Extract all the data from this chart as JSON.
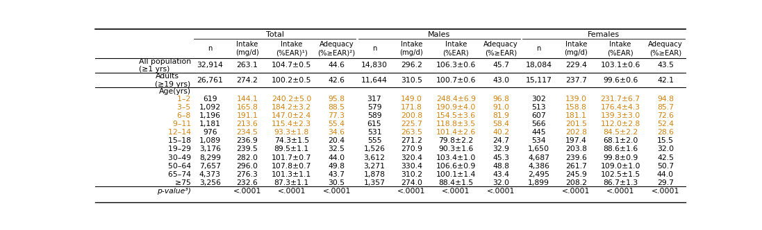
{
  "rows": [
    {
      "label": "All population\n(≥1 yrs)",
      "values": [
        "32,914",
        "263.1",
        "104.7±0.5",
        "44.6",
        "14,830",
        "296.2",
        "106.3±0.6",
        "45.7",
        "18,084",
        "229.4",
        "103.1±0.6",
        "43.5"
      ],
      "bold": false,
      "sep_below": true,
      "color": "black",
      "label_bold": false
    },
    {
      "label": "Adults\n(≥19 yrs)",
      "values": [
        "26,761",
        "274.2",
        "100.2±0.5",
        "42.6",
        "11,644",
        "310.5",
        "100.7±0.6",
        "43.0",
        "15,117",
        "237.7",
        "99.6±0.6",
        "42.1"
      ],
      "bold": false,
      "sep_below": true,
      "color": "black",
      "label_bold": false
    },
    {
      "label": "Age(yrs)",
      "values": [
        "",
        "",
        "",
        "",
        "",
        "",
        "",
        "",
        "",
        "",
        "",
        ""
      ],
      "bold": false,
      "sep_below": false,
      "color": "black",
      "label_bold": false
    },
    {
      "label": "  1–2",
      "values": [
        "619",
        "144.1",
        "240.2±5.0",
        "95.8",
        "317",
        "149.0",
        "248.4±6.9",
        "96.8",
        "302",
        "139.0",
        "231.7±6.7",
        "94.8"
      ],
      "bold": false,
      "sep_below": false,
      "color": "orange",
      "label_bold": false
    },
    {
      "label": "  3–5",
      "values": [
        "1,092",
        "165.8",
        "184.2±3.2",
        "88.5",
        "579",
        "171.8",
        "190.9±4.0",
        "91.0",
        "513",
        "158.8",
        "176.4±4.3",
        "85.7"
      ],
      "bold": false,
      "sep_below": false,
      "color": "orange",
      "label_bold": false
    },
    {
      "label": "  6–8",
      "values": [
        "1,196",
        "191.1",
        "147.0±2.4",
        "77.3",
        "589",
        "200.8",
        "154.5±3.6",
        "81.9",
        "607",
        "181.1",
        "139.3±3.0",
        "72.6"
      ],
      "bold": false,
      "sep_below": false,
      "color": "orange",
      "label_bold": false
    },
    {
      "label": "  9–11",
      "values": [
        "1,181",
        "213.6",
        "115.4±2.3",
        "55.4",
        "615",
        "225.7",
        "118.8±3.5",
        "58.4",
        "566",
        "201.5",
        "112.0±2.8",
        "52.4"
      ],
      "bold": false,
      "sep_below": false,
      "color": "orange",
      "label_bold": false
    },
    {
      "label": "  12–14",
      "values": [
        "976",
        "234.5",
        "93.3±1.8",
        "34.6",
        "531",
        "263.5",
        "101.4±2.6",
        "40.2",
        "445",
        "202.8",
        "84.5±2.2",
        "28.6"
      ],
      "bold": false,
      "sep_below": false,
      "color": "orange",
      "label_bold": false
    },
    {
      "label": "  15–18",
      "values": [
        "1,089",
        "236.9",
        "74.3±1.5",
        "20.4",
        "555",
        "271.2",
        "79.8±2.2",
        "24.7",
        "534",
        "197.4",
        "68.1±2.0",
        "15.5"
      ],
      "bold": false,
      "sep_below": false,
      "color": "black",
      "label_bold": false
    },
    {
      "label": "  19–29",
      "values": [
        "3,176",
        "239.5",
        "89.5±1.1",
        "32.5",
        "1,526",
        "270.9",
        "90.3±1.6",
        "32.9",
        "1,650",
        "203.8",
        "88.6±1.6",
        "32.0"
      ],
      "bold": false,
      "sep_below": false,
      "color": "black",
      "label_bold": false
    },
    {
      "label": "  30–49",
      "values": [
        "8,299",
        "282.0",
        "101.7±0.7",
        "44.0",
        "3,612",
        "320.4",
        "103.4±1.0",
        "45.3",
        "4,687",
        "239.6",
        "99.8±0.9",
        "42.5"
      ],
      "bold": false,
      "sep_below": false,
      "color": "black",
      "label_bold": false
    },
    {
      "label": "  50–64",
      "values": [
        "7,657",
        "296.0",
        "107.8±0.7",
        "49.8",
        "3,271",
        "330.4",
        "106.6±0.9",
        "48.8",
        "4,386",
        "261.7",
        "109.0±1.0",
        "50.7"
      ],
      "bold": false,
      "sep_below": false,
      "color": "black",
      "label_bold": false
    },
    {
      "label": "  65–74",
      "values": [
        "4,373",
        "276.3",
        "101.3±1.1",
        "43.7",
        "1,878",
        "310.2",
        "100.1±1.4",
        "43.4",
        "2,495",
        "245.9",
        "102.5±1.5",
        "44.0"
      ],
      "bold": false,
      "sep_below": false,
      "color": "black",
      "label_bold": false
    },
    {
      "label": "  ≥75",
      "values": [
        "3,256",
        "232.6",
        "87.3±1.1",
        "30.5",
        "1,357",
        "274.0",
        "88.4±1.5",
        "32.0",
        "1,899",
        "208.2",
        "86.7±1.3",
        "29.7"
      ],
      "bold": false,
      "sep_below": true,
      "color": "black",
      "label_bold": false
    },
    {
      "label": "p-value³)",
      "values": [
        "",
        "<.0001",
        "<.0001",
        "<.0001",
        "",
        "<.0001",
        "<.0001",
        "<.0001",
        "",
        "<.0001",
        "<.0001",
        "<.0001"
      ],
      "bold": false,
      "sep_below": false,
      "color": "black",
      "label_bold": false,
      "italic_label": true
    }
  ],
  "col_header_labels": [
    "n",
    "Intake\n(mg/d)",
    "Intake\n(%EAR)¹)",
    "Adequacy\n(%≥EAR)²)",
    "n",
    "Intake\n(mg/d)",
    "Intake\n(%EAR)",
    "Adequacy\n(%≥EAR)",
    "n",
    "Intake\n(mg/d)",
    "Intake\n(%EAR)",
    "Adequacy\n(%≥EAR)"
  ],
  "group_labels": [
    "Total",
    "Males",
    "Females"
  ],
  "group_col_ranges": [
    [
      1,
      4
    ],
    [
      5,
      8
    ],
    [
      9,
      12
    ]
  ],
  "orange_color": "#d4820a",
  "font_size": 7.8,
  "header_font_size": 8.0
}
